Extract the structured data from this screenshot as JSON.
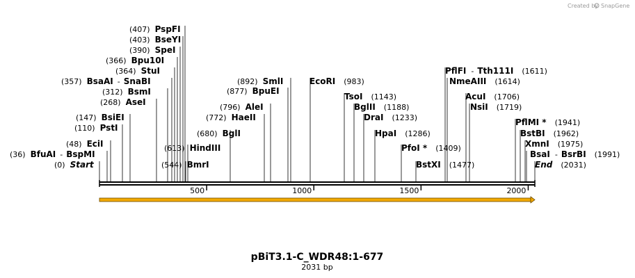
{
  "credit": {
    "text": "Created by",
    "brand": "SnapGene"
  },
  "title": "pBiT3.1-C_WDR48:1-677",
  "subtitle": "2031 bp",
  "sequence_length": 2031,
  "ruler_ticks": [
    "500",
    "1000",
    "1500",
    "2000"
  ],
  "ruler_tick_values": [
    500,
    1000,
    1500,
    2000
  ],
  "feature_color": "#f2a900",
  "sites": [
    {
      "pos": "(407)",
      "name": "PspFI",
      "bp": 407
    },
    {
      "pos": "(403)",
      "name": "BseYI",
      "bp": 403
    },
    {
      "pos": "(390)",
      "name": "SpeI",
      "bp": 390
    },
    {
      "pos": "(366)",
      "name": "Bpu10I",
      "bp": 366
    },
    {
      "pos": "(364)",
      "name": "StuI",
      "bp": 364
    },
    {
      "pos": "(357)",
      "name": "BsaAI",
      "name2": "SnaBI",
      "bp": 357
    },
    {
      "pos": "(312)",
      "name": "BsmI",
      "bp": 312
    },
    {
      "pos": "(268)",
      "name": "AseI",
      "bp": 268
    },
    {
      "pos": "(147)",
      "name": "BsiEI",
      "bp": 147
    },
    {
      "pos": "(110)",
      "name": "PstI",
      "bp": 110
    },
    {
      "pos": "(48)",
      "name": "EciI",
      "bp": 48
    },
    {
      "pos": "(36)",
      "name": "BfuAI",
      "name2": "BspMI",
      "bp": 36
    },
    {
      "pos": "(0)",
      "name": "Start",
      "bp": 0,
      "italic": true
    },
    {
      "pos": "(613)",
      "name": "HindIII",
      "bp": 613
    },
    {
      "pos": "(544)",
      "name": "BmrI",
      "bp": 544
    },
    {
      "pos": "(680)",
      "name": "BglI",
      "bp": 680
    },
    {
      "pos": "(772)",
      "name": "HaeII",
      "bp": 772
    },
    {
      "pos": "(796)",
      "name": "AleI",
      "bp": 796
    },
    {
      "pos": "(877)",
      "name": "BpuEI",
      "bp": 877
    },
    {
      "pos": "(892)",
      "name": "SmlI",
      "bp": 892
    },
    {
      "pos": "(983)",
      "name": "EcoRI",
      "bp": 983
    },
    {
      "pos": "(1143)",
      "name": "TsoI",
      "bp": 1143
    },
    {
      "pos": "(1188)",
      "name": "BglII",
      "bp": 1188
    },
    {
      "pos": "(1233)",
      "name": "DraI",
      "bp": 1233
    },
    {
      "pos": "(1286)",
      "name": "HpaI",
      "bp": 1286
    },
    {
      "pos": "(1409)",
      "name": "PfoI *",
      "bp": 1409
    },
    {
      "pos": "(1477)",
      "name": "BstXI",
      "bp": 1477
    },
    {
      "pos": "(1611)",
      "name": "PflFI",
      "name2": "Tth111I",
      "bp": 1611
    },
    {
      "pos": "(1614)",
      "name": "NmeAIII",
      "bp": 1614
    },
    {
      "pos": "(1706)",
      "name": "AcuI",
      "bp": 1706
    },
    {
      "pos": "(1719)",
      "name": "NsiI",
      "bp": 1719
    },
    {
      "pos": "(1941)",
      "name": "PflMI *",
      "bp": 1941
    },
    {
      "pos": "(1962)",
      "name": "BstBI",
      "bp": 1962
    },
    {
      "pos": "(1975)",
      "name": "XmnI",
      "bp": 1975
    },
    {
      "pos": "(1991)",
      "name": "BsaI",
      "name2": "BsrBI",
      "bp": 1991
    },
    {
      "pos": "(2031)",
      "name": "End",
      "bp": 2031,
      "italic": true
    }
  ]
}
